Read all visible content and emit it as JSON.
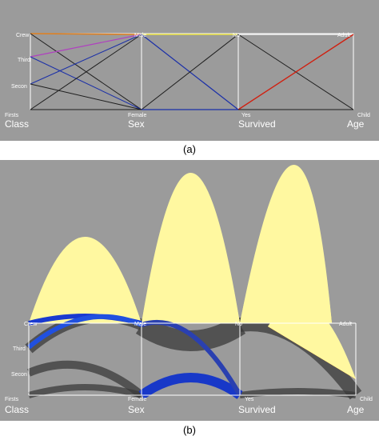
{
  "figure": {
    "caption_a": "(a)",
    "caption_b": "(b)"
  },
  "axes": [
    {
      "title": "Class",
      "categories": [
        "Crew",
        "Third",
        "Secon",
        "Firsts"
      ]
    },
    {
      "title": "Sex",
      "categories": [
        "Male",
        "Female"
      ]
    },
    {
      "title": "Survived",
      "categories": [
        "No",
        "Yes"
      ]
    },
    {
      "title": "Age",
      "categories": [
        "Adult",
        "Child"
      ]
    }
  ],
  "colors": {
    "background": "#9b9b9b",
    "axis": "#ffffff",
    "line_default": "#1e1e1e",
    "line_blue": "#1a2fa8",
    "line_purple": "#b040c0",
    "line_orange": "#e08020",
    "line_yellow": "#e8e040",
    "line_red": "#d02010",
    "gradient": [
      "#1020c0",
      "#6030e0",
      "#b020a0",
      "#e03010",
      "#f08000",
      "#ffd000",
      "#fff8a0"
    ]
  }
}
